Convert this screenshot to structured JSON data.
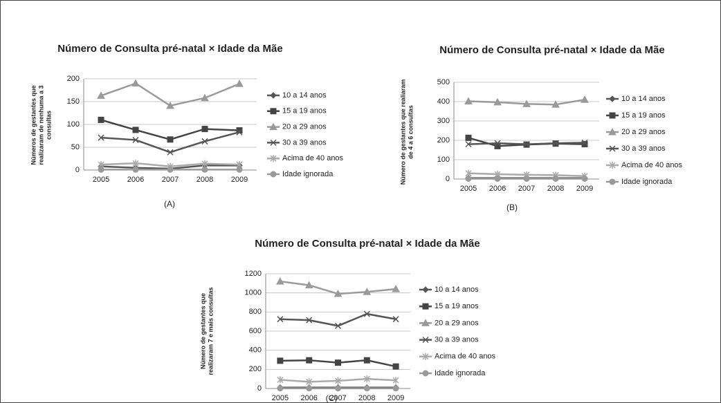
{
  "chart_data": [
    {
      "type": "line",
      "title": "Número de Consulta pré-natal × Idade da Mãe",
      "ylabel": [
        "Números de gestantes que",
        "realizaram de nenhuma a 3",
        "consultas"
      ],
      "caption": "(A)",
      "categories": [
        "2005",
        "2006",
        "2007",
        "2008",
        "2009"
      ],
      "ylim": [
        0,
        200
      ],
      "yticks": [
        0,
        50,
        100,
        150,
        200
      ],
      "grid": true,
      "series": [
        {
          "name": "10 a 14 anos",
          "color": "#555555",
          "marker": "diamond",
          "values": [
            8,
            5,
            3,
            10,
            10
          ]
        },
        {
          "name": "15 a 19 anos",
          "color": "#444444",
          "marker": "square",
          "values": [
            110,
            88,
            67,
            90,
            87
          ]
        },
        {
          "name": "20 a 29 anos",
          "color": "#9a9a9a",
          "marker": "triangle",
          "values": [
            163,
            190,
            141,
            158,
            189
          ]
        },
        {
          "name": "30 a 39 anos",
          "color": "#555555",
          "marker": "x",
          "values": [
            71,
            66,
            39,
            63,
            83
          ]
        },
        {
          "name": "Acima de 40 anos",
          "color": "#aaaaaa",
          "marker": "star",
          "values": [
            12,
            15,
            8,
            14,
            12
          ]
        },
        {
          "name": "Idade ignorada",
          "color": "#999999",
          "marker": "circle",
          "values": [
            1,
            1,
            1,
            1,
            1
          ]
        }
      ]
    },
    {
      "type": "line",
      "title": "Número de Consulta pré-natal × Idade da Mãe",
      "ylabel": [
        "Número de gestantes que realiaram",
        "de 4 a 6 consultas"
      ],
      "caption": "(B)",
      "categories": [
        "2005",
        "2006",
        "2007",
        "2008",
        "2009"
      ],
      "ylim": [
        0,
        500
      ],
      "yticks": [
        0,
        100,
        200,
        300,
        400,
        500
      ],
      "grid": true,
      "series": [
        {
          "name": "10 a 14 anos",
          "color": "#555555",
          "marker": "diamond",
          "values": [
            5,
            5,
            5,
            5,
            5
          ]
        },
        {
          "name": "15 a 19 anos",
          "color": "#444444",
          "marker": "square",
          "values": [
            213,
            170,
            178,
            183,
            180
          ]
        },
        {
          "name": "20 a 29 anos",
          "color": "#9a9a9a",
          "marker": "triangle",
          "values": [
            402,
            397,
            388,
            385,
            410
          ]
        },
        {
          "name": "30 a 39 anos",
          "color": "#555555",
          "marker": "x",
          "values": [
            180,
            185,
            180,
            185,
            188
          ]
        },
        {
          "name": "Acima de 40 anos",
          "color": "#aaaaaa",
          "marker": "star",
          "values": [
            30,
            25,
            22,
            20,
            15
          ]
        },
        {
          "name": "Idade ignorada",
          "color": "#999999",
          "marker": "circle",
          "values": [
            2,
            2,
            2,
            2,
            2
          ]
        }
      ]
    },
    {
      "type": "line",
      "title": "Número de Consulta pré-natal × Idade da Mãe",
      "ylabel": [
        "Número de gestantes que",
        "realizaram 7 e mais consultas"
      ],
      "caption": "(C)",
      "categories": [
        "2005",
        "2006",
        "2007",
        "2008",
        "2009"
      ],
      "ylim": [
        0,
        1200
      ],
      "yticks": [
        0,
        200,
        400,
        600,
        800,
        1000,
        1200
      ],
      "grid": true,
      "series": [
        {
          "name": "10 a 14 anos",
          "color": "#555555",
          "marker": "diamond",
          "values": [
            10,
            10,
            10,
            10,
            10
          ]
        },
        {
          "name": "15 a 19 anos",
          "color": "#444444",
          "marker": "square",
          "values": [
            290,
            295,
            270,
            295,
            230
          ]
        },
        {
          "name": "20 a 29 anos",
          "color": "#9a9a9a",
          "marker": "triangle",
          "values": [
            1120,
            1080,
            990,
            1010,
            1040
          ]
        },
        {
          "name": "30 a 39 anos",
          "color": "#555555",
          "marker": "x",
          "values": [
            725,
            715,
            655,
            780,
            725
          ]
        },
        {
          "name": "Acima de 40 anos",
          "color": "#aaaaaa",
          "marker": "star",
          "values": [
            90,
            70,
            80,
            100,
            85
          ]
        },
        {
          "name": "Idade ignorada",
          "color": "#999999",
          "marker": "circle",
          "values": [
            2,
            2,
            2,
            2,
            2
          ]
        }
      ]
    }
  ]
}
